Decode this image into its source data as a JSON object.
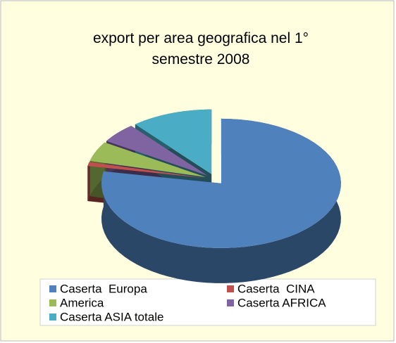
{
  "chart_data": {
    "type": "pie3d",
    "title": "export per area geografica nel 1° semestre 2008",
    "categories": [
      "Caserta  Europa",
      "Caserta  CINA",
      "America",
      "Caserta AFRICA",
      "Caserta ASIA totale"
    ],
    "values": [
      78,
      1,
      5,
      5,
      11
    ],
    "colors": [
      "#4f81bd",
      "#c0504d",
      "#9bbb59",
      "#8064a2",
      "#4bacc6"
    ],
    "legend": "bottom"
  }
}
